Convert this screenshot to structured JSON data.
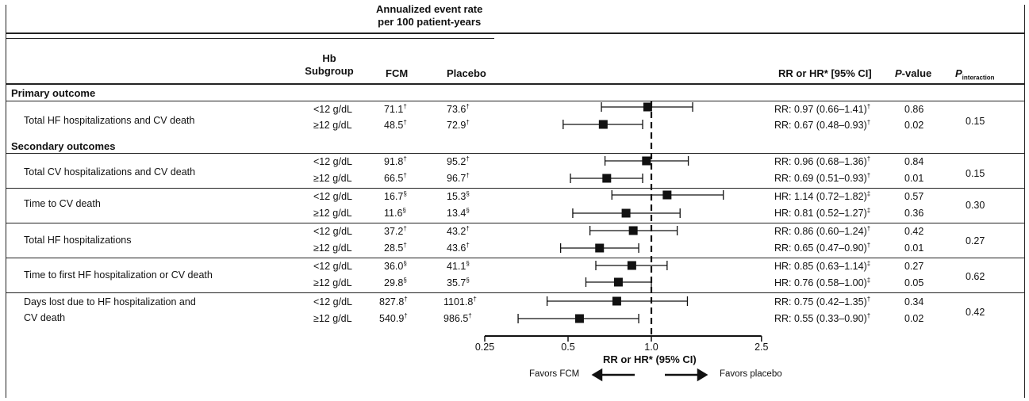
{
  "header": {
    "rate_title_line1": "Annualized event rate",
    "rate_title_line2": "per 100 patient-years",
    "col_hb_line1": "Hb",
    "col_hb_line2": "Subgroup",
    "col_fcm": "FCM",
    "col_placebo": "Placebo",
    "col_ratio": "RR or HR* [95% CI]",
    "col_pvalue_italic": "P",
    "col_pvalue_rest": "-value",
    "col_pint_main": "P",
    "col_pint_sub": "interaction"
  },
  "sections": {
    "primary": "Primary outcome",
    "secondary": "Secondary outcomes"
  },
  "outcomes": [
    {
      "label_line1": "Total HF hospitalizations and CV death",
      "label_line2": "",
      "p_interaction": "0.15",
      "rows": [
        {
          "subgroup": "<12 g/dL",
          "fcm": "71.1",
          "fcm_mark": "†",
          "placebo": "73.6",
          "placebo_mark": "†",
          "ratio": "RR: 0.97 (0.66–1.41)",
          "ratio_mark": "†",
          "pvalue": "0.86"
        },
        {
          "subgroup": "≥12 g/dL",
          "fcm": "48.5",
          "fcm_mark": "†",
          "placebo": "72.9",
          "placebo_mark": "†",
          "ratio": "RR: 0.67 (0.48–0.93)",
          "ratio_mark": "†",
          "pvalue": "0.02"
        }
      ]
    },
    {
      "label_line1": "Total CV hospitalizations and CV death",
      "label_line2": "",
      "p_interaction": "0.15",
      "rows": [
        {
          "subgroup": "<12 g/dL",
          "fcm": "91.8",
          "fcm_mark": "†",
          "placebo": "95.2",
          "placebo_mark": "†",
          "ratio": "RR: 0.96 (0.68–1.36)",
          "ratio_mark": "†",
          "pvalue": "0.84"
        },
        {
          "subgroup": "≥12 g/dL",
          "fcm": "66.5",
          "fcm_mark": "†",
          "placebo": "96.7",
          "placebo_mark": "†",
          "ratio": "RR: 0.69 (0.51–0.93)",
          "ratio_mark": "†",
          "pvalue": "0.01"
        }
      ]
    },
    {
      "label_line1": "Time to CV death",
      "label_line2": "",
      "p_interaction": "0.30",
      "rows": [
        {
          "subgroup": "<12 g/dL",
          "fcm": "16.7",
          "fcm_mark": "§",
          "placebo": "15.3",
          "placebo_mark": "§",
          "ratio": "HR: 1.14 (0.72–1.82)",
          "ratio_mark": "‡",
          "pvalue": "0.57"
        },
        {
          "subgroup": "≥12 g/dL",
          "fcm": "11.6",
          "fcm_mark": "§",
          "placebo": "13.4",
          "placebo_mark": "§",
          "ratio": "HR: 0.81 (0.52–1.27)",
          "ratio_mark": "‡",
          "pvalue": "0.36"
        }
      ]
    },
    {
      "label_line1": "Total HF hospitalizations",
      "label_line2": "",
      "p_interaction": "0.27",
      "rows": [
        {
          "subgroup": "<12 g/dL",
          "fcm": "37.2",
          "fcm_mark": "†",
          "placebo": "43.2",
          "placebo_mark": "†",
          "ratio": "RR: 0.86 (0.60–1.24)",
          "ratio_mark": "†",
          "pvalue": "0.42"
        },
        {
          "subgroup": "≥12 g/dL",
          "fcm": "28.5",
          "fcm_mark": "†",
          "placebo": "43.6",
          "placebo_mark": "†",
          "ratio": "RR: 0.65 (0.47–0.90)",
          "ratio_mark": "†",
          "pvalue": "0.01"
        }
      ]
    },
    {
      "label_line1": "Time to first HF hospitalization or CV death",
      "label_line2": "",
      "p_interaction": "0.62",
      "rows": [
        {
          "subgroup": "<12 g/dL",
          "fcm": "36.0",
          "fcm_mark": "§",
          "placebo": "41.1",
          "placebo_mark": "§",
          "ratio": "HR: 0.85 (0.63–1.14)",
          "ratio_mark": "‡",
          "pvalue": "0.27"
        },
        {
          "subgroup": "≥12 g/dL",
          "fcm": "29.8",
          "fcm_mark": "§",
          "placebo": "35.7",
          "placebo_mark": "§",
          "ratio": "HR: 0.76 (0.58–1.00)",
          "ratio_mark": "‡",
          "pvalue": "0.05"
        }
      ]
    },
    {
      "label_line1": "Days lost due to HF hospitalization and",
      "label_line2": "CV death",
      "p_interaction": "0.42",
      "rows": [
        {
          "subgroup": "<12 g/dL",
          "fcm": "827.8",
          "fcm_mark": "†",
          "placebo": "1101.8",
          "placebo_mark": "†",
          "ratio": "RR: 0.75 (0.42–1.35)",
          "ratio_mark": "†",
          "pvalue": "0.34"
        },
        {
          "subgroup": "≥12 g/dL",
          "fcm": "540.9",
          "fcm_mark": "†",
          "placebo": "986.5",
          "placebo_mark": "†",
          "ratio": "RR: 0.55 (0.33–0.90)",
          "ratio_mark": "†",
          "pvalue": "0.02"
        }
      ]
    }
  ],
  "chart_data": {
    "type": "forest",
    "scale": "log",
    "xlim": [
      0.25,
      2.5
    ],
    "xticks": [
      0.25,
      0.5,
      1.0,
      2.5
    ],
    "xtick_labels": [
      "0.25",
      "0.5",
      "1.0",
      "2.5"
    ],
    "reference_line": 1.0,
    "xlabel": "RR or HR* (95% CI)",
    "favors_left": "Favors FCM",
    "favors_right": "Favors placebo",
    "points": [
      {
        "estimate": 0.97,
        "lower": 0.66,
        "upper": 1.41
      },
      {
        "estimate": 0.67,
        "lower": 0.48,
        "upper": 0.93
      },
      {
        "estimate": 0.96,
        "lower": 0.68,
        "upper": 1.36
      },
      {
        "estimate": 0.69,
        "lower": 0.51,
        "upper": 0.93
      },
      {
        "estimate": 1.14,
        "lower": 0.72,
        "upper": 1.82
      },
      {
        "estimate": 0.81,
        "lower": 0.52,
        "upper": 1.27
      },
      {
        "estimate": 0.86,
        "lower": 0.6,
        "upper": 1.24
      },
      {
        "estimate": 0.65,
        "lower": 0.47,
        "upper": 0.9
      },
      {
        "estimate": 0.85,
        "lower": 0.63,
        "upper": 1.14
      },
      {
        "estimate": 0.76,
        "lower": 0.58,
        "upper": 1.0
      },
      {
        "estimate": 0.75,
        "lower": 0.42,
        "upper": 1.35
      },
      {
        "estimate": 0.55,
        "lower": 0.33,
        "upper": 0.9
      }
    ]
  }
}
